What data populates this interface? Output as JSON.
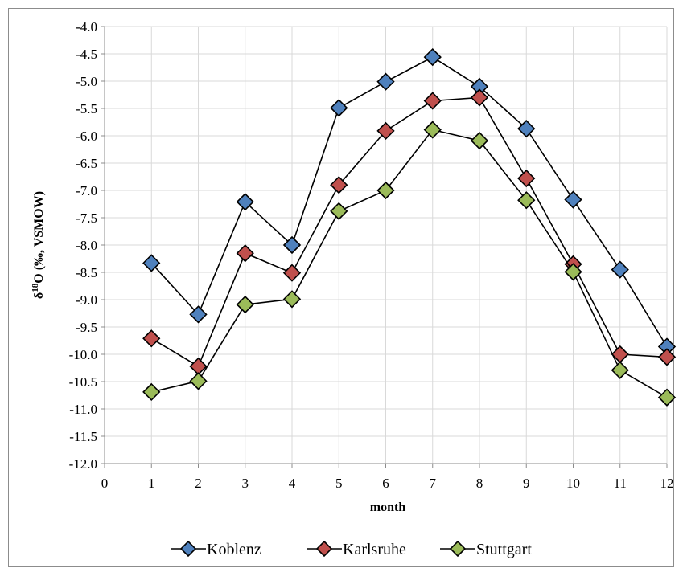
{
  "chart_data": {
    "type": "line",
    "x": [
      1,
      2,
      3,
      4,
      5,
      6,
      7,
      8,
      9,
      10,
      11,
      12
    ],
    "xlim": [
      0,
      12
    ],
    "ylim": [
      -12.0,
      -4.0
    ],
    "x_ticks": [
      "0",
      "1",
      "2",
      "3",
      "4",
      "5",
      "6",
      "7",
      "8",
      "9",
      "10",
      "11",
      "12"
    ],
    "y_ticks": [
      "-4.0",
      "-4.5",
      "-5.0",
      "-5.5",
      "-6.0",
      "-6.5",
      "-7.0",
      "-7.5",
      "-8.0",
      "-8.5",
      "-9.0",
      "-9.5",
      "-10.0",
      "-10.5",
      "-11.0",
      "-11.5",
      "-12.0"
    ],
    "xlabel": "month",
    "ylabel_main": "δ",
    "ylabel_sup": "18",
    "ylabel_rest": "O (‰, VSMOW)",
    "grid": true,
    "legend_position": "bottom",
    "series": [
      {
        "name": "Koblenz",
        "color": "#4f81bd",
        "values": [
          -8.33,
          -9.27,
          -7.21,
          -8.0,
          -5.49,
          -5.01,
          -4.56,
          -5.1,
          -5.87,
          -7.17,
          -8.45,
          -9.86
        ]
      },
      {
        "name": "Karlsruhe",
        "color": "#c0504d",
        "values": [
          -9.71,
          -10.22,
          -8.15,
          -8.51,
          -6.9,
          -5.91,
          -5.36,
          -5.3,
          -6.78,
          -8.35,
          -10.0,
          -10.05
        ]
      },
      {
        "name": "Stuttgart",
        "color": "#9bbb59",
        "values": [
          -10.69,
          -10.49,
          -9.09,
          -8.99,
          -7.38,
          -7.0,
          -5.89,
          -6.09,
          -7.18,
          -8.49,
          -10.29,
          -10.79
        ]
      }
    ]
  }
}
